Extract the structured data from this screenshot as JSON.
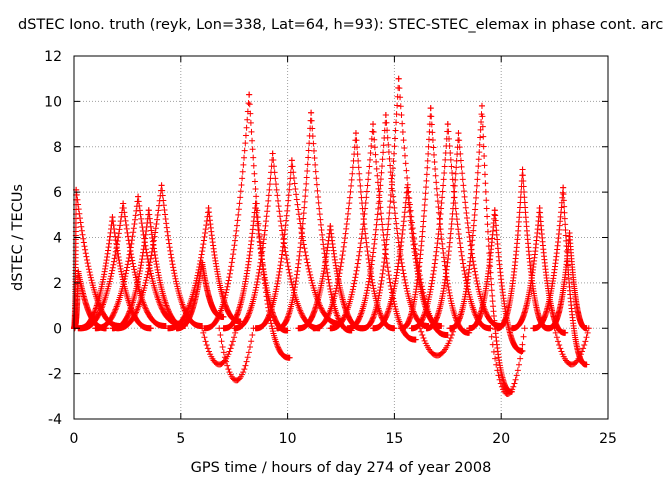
{
  "chart_data": {
    "type": "scatter",
    "title": "dSTEC Iono. truth (reyk, Lon=338, Lat=64, h=93): STEC-STEC_elemax in phase cont. arc",
    "xlabel": "GPS time / hours of day 274 of year 2008",
    "ylabel": "dSTEC  / TECUs",
    "xlim": [
      0,
      25
    ],
    "ylim": [
      -4,
      12
    ],
    "xticks": [
      0,
      5,
      10,
      15,
      20,
      25
    ],
    "yticks": [
      -4,
      -2,
      0,
      2,
      4,
      6,
      8,
      10,
      12
    ],
    "grid": true,
    "legend": "none",
    "marker": "+",
    "color": "#ff0000",
    "arcs": [
      {
        "peak_time": 0.1,
        "peak_value": 6.1,
        "start": 0.0,
        "end": 2.2,
        "end_value": 0.1
      },
      {
        "peak_time": 0.2,
        "peak_value": 2.5,
        "start": 0.0,
        "end": 1.5,
        "end_value": 0.0
      },
      {
        "peak_time": 2.3,
        "peak_value": 5.5,
        "start": 0.3,
        "end": 4.3,
        "end_value": 0.1
      },
      {
        "peak_time": 3.0,
        "peak_value": 5.8,
        "start": 1.0,
        "end": 5.0,
        "end_value": 0.2
      },
      {
        "peak_time": 4.1,
        "peak_value": 6.3,
        "start": 2.0,
        "end": 6.0,
        "end_value": 0.1
      },
      {
        "peak_time": 1.8,
        "peak_value": 4.9,
        "start": 0.2,
        "end": 3.6,
        "end_value": 0.0
      },
      {
        "peak_time": 3.5,
        "peak_value": 5.2,
        "start": 1.8,
        "end": 5.2,
        "end_value": 0.1
      },
      {
        "peak_time": 6.3,
        "peak_value": 5.3,
        "start": 4.4,
        "end": 7.8,
        "end_value": 0.3
      },
      {
        "peak_time": 6.0,
        "peak_value": 2.9,
        "start": 4.8,
        "end": 7.0,
        "end_value": 0.5
      },
      {
        "peak_time": 8.2,
        "peak_value": 10.3,
        "start": 6.1,
        "end": 10.1,
        "end_value": -1.3
      },
      {
        "peak_time": 9.3,
        "peak_value": 7.7,
        "start": 7.5,
        "end": 11.5,
        "end_value": 0.0
      },
      {
        "peak_time": 8.5,
        "peak_value": 5.5,
        "start": 7.0,
        "end": 10.0,
        "end_value": -0.1
      },
      {
        "peak_time": 10.2,
        "peak_value": 7.4,
        "start": 8.5,
        "end": 12.5,
        "end_value": 0.2
      },
      {
        "peak_time": 11.1,
        "peak_value": 9.5,
        "start": 9.5,
        "end": 13.0,
        "end_value": -0.1
      },
      {
        "peak_time": 12.0,
        "peak_value": 4.5,
        "start": 10.5,
        "end": 13.5,
        "end_value": 0.0
      },
      {
        "peak_time": 13.2,
        "peak_value": 8.6,
        "start": 11.2,
        "end": 15.0,
        "end_value": 0.0
      },
      {
        "peak_time": 14.0,
        "peak_value": 9.0,
        "start": 12.0,
        "end": 16.0,
        "end_value": -0.5
      },
      {
        "peak_time": 14.6,
        "peak_value": 9.4,
        "start": 12.8,
        "end": 16.6,
        "end_value": 0.1
      },
      {
        "peak_time": 15.2,
        "peak_value": 11.0,
        "start": 13.5,
        "end": 17.5,
        "end_value": -0.3
      },
      {
        "peak_time": 15.6,
        "peak_value": 6.2,
        "start": 14.0,
        "end": 17.2,
        "end_value": 0.1
      },
      {
        "peak_time": 16.7,
        "peak_value": 9.7,
        "start": 15.3,
        "end": 18.5,
        "end_value": -0.2
      },
      {
        "peak_time": 17.5,
        "peak_value": 9.0,
        "start": 15.8,
        "end": 19.5,
        "end_value": 0.0
      },
      {
        "peak_time": 18.0,
        "peak_value": 8.6,
        "start": 16.5,
        "end": 20.0,
        "end_value": 0.1
      },
      {
        "peak_time": 19.1,
        "peak_value": 9.8,
        "start": 17.6,
        "end": 20.5,
        "end_value": -2.8
      },
      {
        "peak_time": 19.7,
        "peak_value": 5.2,
        "start": 18.5,
        "end": 21.0,
        "end_value": -1.0
      },
      {
        "peak_time": 21.0,
        "peak_value": 7.0,
        "start": 19.8,
        "end": 22.2,
        "end_value": 0.0
      },
      {
        "peak_time": 21.8,
        "peak_value": 5.3,
        "start": 20.5,
        "end": 23.0,
        "end_value": -0.2
      },
      {
        "peak_time": 22.9,
        "peak_value": 6.2,
        "start": 21.5,
        "end": 24.0,
        "end_value": -1.6
      },
      {
        "peak_time": 23.2,
        "peak_value": 4.2,
        "start": 22.2,
        "end": 24.0,
        "end_value": 0.0
      }
    ],
    "low_points": [
      {
        "x": 6.8,
        "y": -1.6
      },
      {
        "x": 7.6,
        "y": -2.3
      },
      {
        "x": 17.0,
        "y": -1.2
      },
      {
        "x": 20.3,
        "y": -2.9
      },
      {
        "x": 23.3,
        "y": -1.6
      }
    ]
  }
}
